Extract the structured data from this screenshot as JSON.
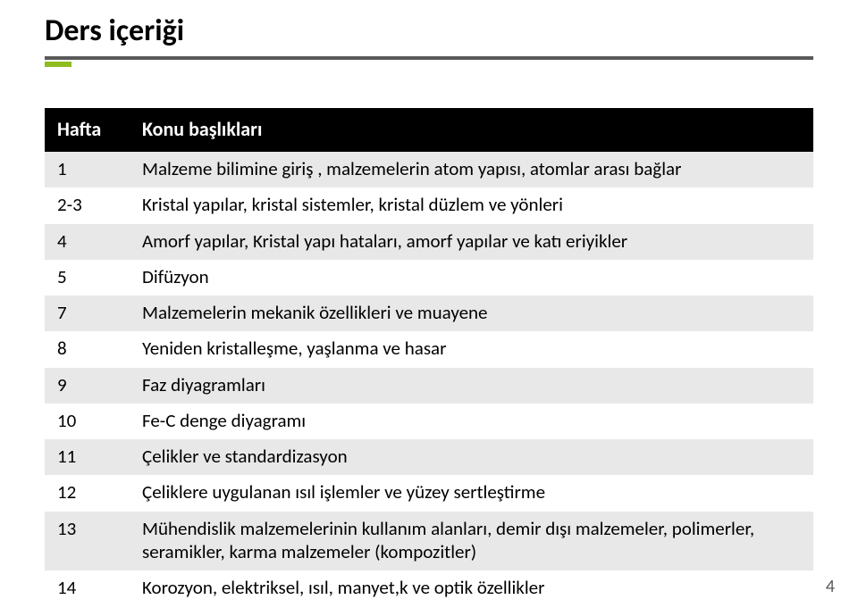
{
  "title": "Ders içeriği",
  "colors": {
    "header_bg": "#000000",
    "band_light": "#e8e8e8",
    "band_white": "#ffffff",
    "line_dark": "#595959",
    "accent": "#8fbc1f",
    "pagenum_color": "#595959"
  },
  "table": {
    "columns": [
      "Hafta",
      "Konu başlıkları"
    ],
    "rows": [
      [
        "1",
        "Malzeme bilimine giriş , malzemelerin atom yapısı, atomlar arası bağlar"
      ],
      [
        "2-3",
        "Kristal yapılar, kristal sistemler, kristal düzlem ve yönleri"
      ],
      [
        "4",
        "Amorf yapılar, Kristal yapı hataları, amorf yapılar ve katı eriyikler"
      ],
      [
        "5",
        "Difüzyon"
      ],
      [
        "7",
        "Malzemelerin mekanik özellikleri ve muayene"
      ],
      [
        "8",
        "Yeniden kristalleşme, yaşlanma ve hasar"
      ],
      [
        "9",
        "Faz diyagramları"
      ],
      [
        "10",
        "Fe-C denge diyagramı"
      ],
      [
        "11",
        "Çelikler ve standardizasyon"
      ],
      [
        "12",
        "Çeliklere uygulanan ısıl işlemler ve yüzey sertleştirme"
      ],
      [
        "13",
        "Mühendislik malzemelerinin kullanım alanları, demir dışı malzemeler, polimerler, seramikler, karma malzemeler (kompozitler)"
      ],
      [
        "14",
        "Korozyon, elektriksel, ısıl, manyet,k ve optik özellikler"
      ]
    ]
  },
  "page_number": "4",
  "fonts": {
    "title_size_pt": 26,
    "header_size_pt": 17,
    "body_size_pt": 16
  }
}
